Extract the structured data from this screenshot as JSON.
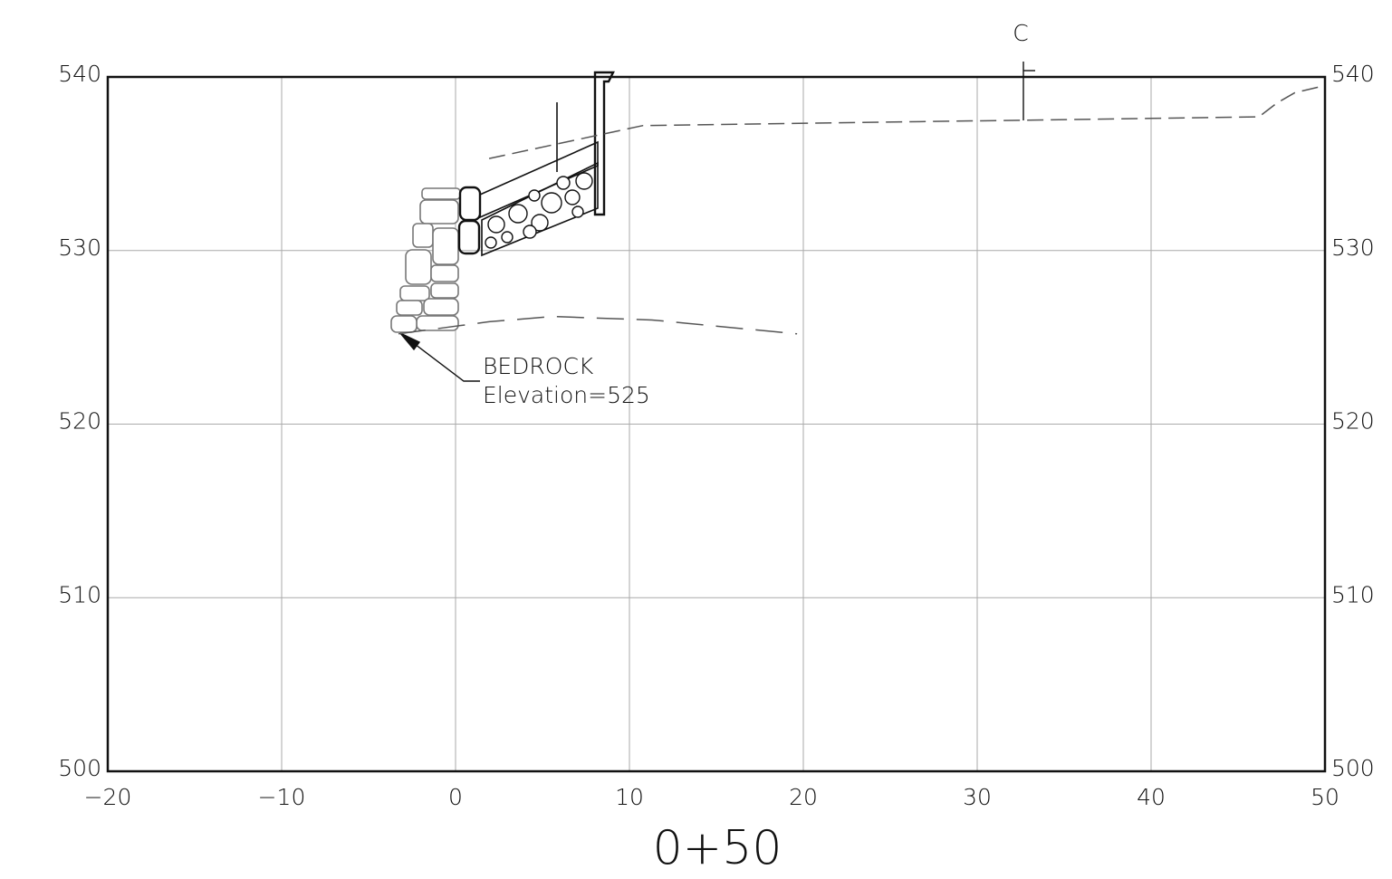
{
  "chart_data": {
    "type": "line",
    "title": "0+50",
    "xlim": [
      -20,
      50
    ],
    "xticks": [
      {
        "value": -20,
        "label": "−20"
      },
      {
        "value": -10,
        "label": "−10"
      },
      0,
      10,
      20,
      30,
      40,
      50
    ],
    "ylim": [
      500,
      540
    ],
    "yticks": [
      500,
      510,
      520,
      530,
      540
    ],
    "grid": true,
    "series": [
      {
        "color": "#555555",
        "dash": "18 8",
        "x": [
          1.93,
          10.78,
          46.2,
          47.24,
          48.28,
          50
        ],
        "values": [
          535.3,
          537.2,
          537.7,
          538.5,
          539.1,
          539.5
        ]
      },
      {
        "color": "#555555",
        "dash": "30 14",
        "x": [
          -3.28,
          1.93,
          5.57,
          11.3,
          19.64
        ],
        "values": [
          525.2,
          525.9,
          526.2,
          526.0,
          525.2
        ]
      }
    ],
    "annotations": [
      "BEDROCK",
      "Elevation=525"
    ],
    "centerline_label": "C"
  }
}
